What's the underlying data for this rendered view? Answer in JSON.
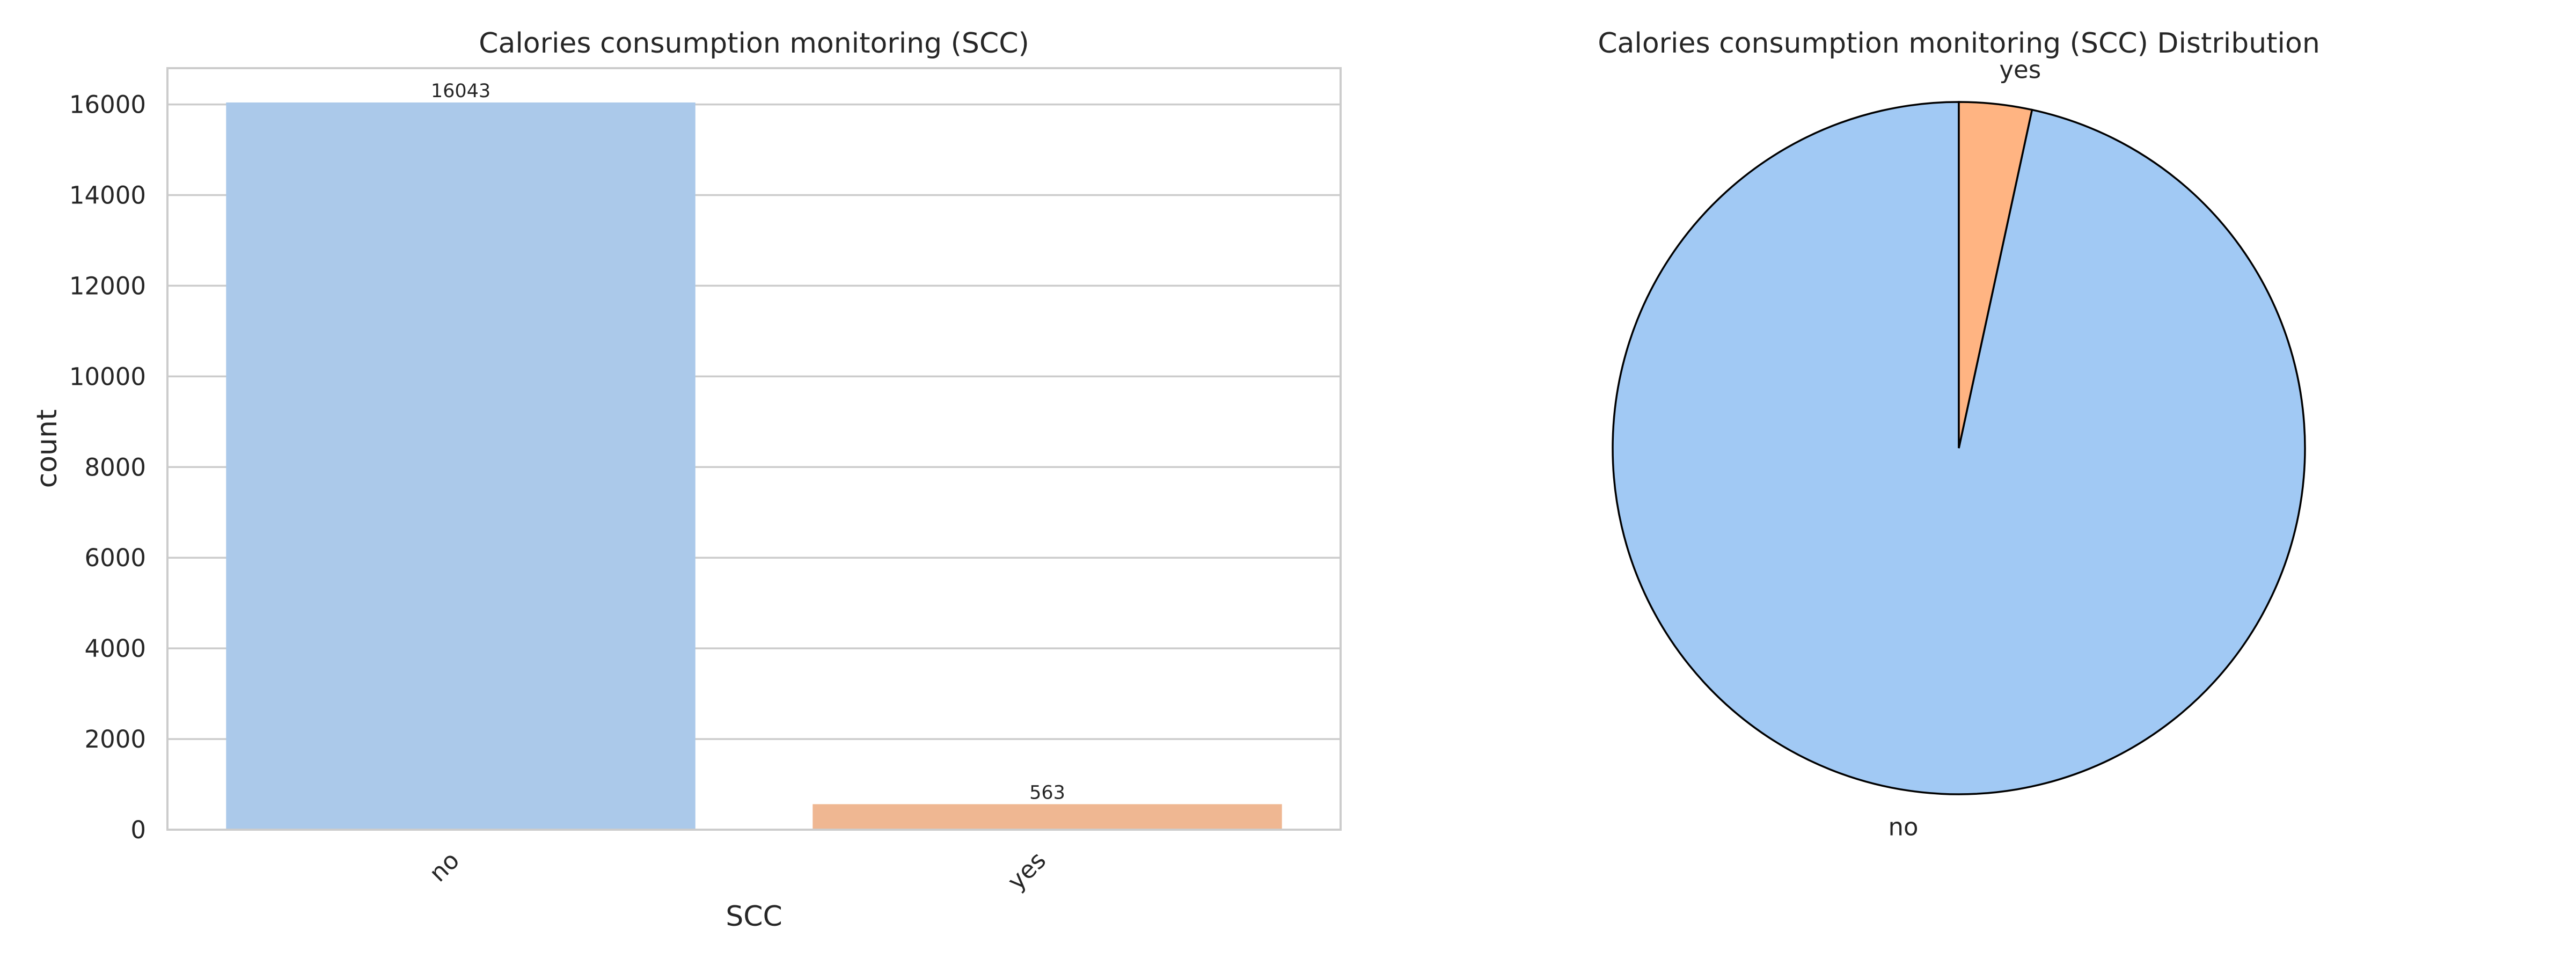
{
  "chart_data": [
    {
      "type": "bar",
      "title": "Calories consumption monitoring (SCC)",
      "xlabel": "SCC",
      "ylabel": "count",
      "categories": [
        "no",
        "yes"
      ],
      "values": [
        16043,
        563
      ],
      "value_labels": [
        "16043",
        "563"
      ],
      "colors": [
        "#abc9ea",
        "#efb792"
      ],
      "ylim": [
        0,
        16800
      ],
      "yticks": [
        0,
        2000,
        4000,
        6000,
        8000,
        10000,
        12000,
        14000,
        16000
      ],
      "grid": true,
      "xtick_rotation_deg": 45
    },
    {
      "type": "pie",
      "title": "Calories consumption monitoring (SCC) Distribution",
      "labels": [
        "no",
        "yes"
      ],
      "values": [
        16043,
        563
      ],
      "colors": [
        "#a1c9f4",
        "#ffb482"
      ],
      "start_angle_deg": 90
    }
  ]
}
